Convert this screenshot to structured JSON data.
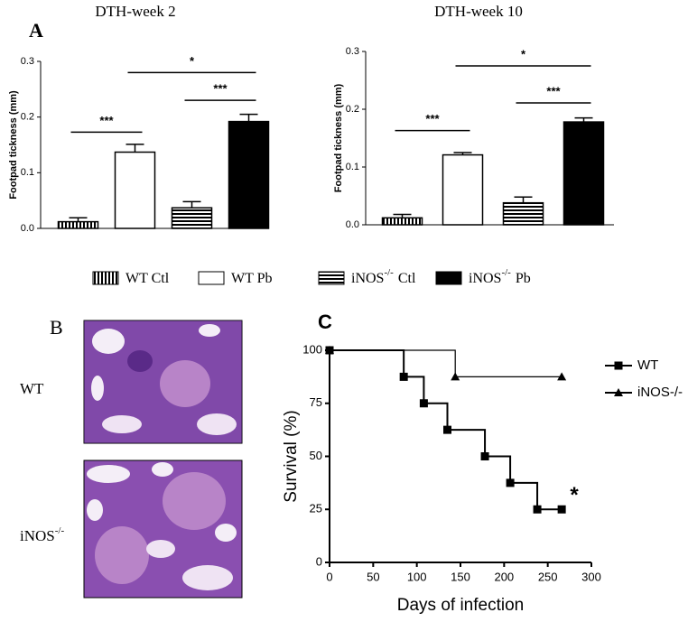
{
  "panel_labels": {
    "a": "A",
    "b": "B",
    "c": "C"
  },
  "legend": [
    {
      "text": "WT Ctl",
      "pattern": "vertical-stripes"
    },
    {
      "text": "WT Pb",
      "pattern": "none"
    },
    {
      "text": "iNOS",
      "sup": "-/-",
      "after": "Ctl",
      "pattern": "horizontal-stripes"
    },
    {
      "text": "iNOS",
      "sup": "-/-",
      "after": "Pb",
      "pattern": "solid"
    }
  ],
  "images": [
    {
      "text": "WT"
    },
    {
      "text": "iNOS",
      "sup": "-/-"
    }
  ],
  "chart_data": [
    {
      "type": "bar",
      "title": "DTH-week 2",
      "ylabel": "Footpad tickness (mm)",
      "categories": [
        null,
        null,
        null,
        null
      ],
      "values": [
        0.012,
        0.137,
        0.037,
        0.192
      ],
      "errors": [
        0.007,
        0.014,
        0.011,
        0.013
      ],
      "patterns": [
        "vertical-stripes",
        "none",
        "horizontal-stripes",
        "solid"
      ],
      "color": "#000000",
      "ylim": [
        0,
        0.3
      ],
      "yticks": [
        {
          "value": 0,
          "label": "0.0"
        },
        0.1,
        0.2,
        0.3
      ],
      "annotations": [
        {
          "text": "***",
          "from": 0,
          "to": 1,
          "y": 0.173
        },
        {
          "text": "*",
          "from": 1,
          "to": 3,
          "y": 0.28
        },
        {
          "text": "***",
          "from": 2,
          "to": 3,
          "y": 0.23
        }
      ]
    },
    {
      "type": "bar",
      "title": "DTH-week 10",
      "ylabel": "Footpad tickness (mm)",
      "categories": [
        null,
        null,
        null,
        null
      ],
      "values": [
        0.012,
        0.121,
        0.038,
        0.178
      ],
      "errors": [
        0.006,
        0.004,
        0.01,
        0.007
      ],
      "patterns": [
        "vertical-stripes",
        "none",
        "horizontal-stripes",
        "solid"
      ],
      "color": "#000000",
      "ylim": [
        0,
        0.3
      ],
      "yticks": [
        {
          "value": 0,
          "label": "0.0"
        },
        0.1,
        0.2,
        0.3
      ],
      "annotations": [
        {
          "text": "***",
          "from": 0,
          "to": 1,
          "y": 0.163
        },
        {
          "text": "*",
          "from": 1,
          "to": 3,
          "y": 0.275
        },
        {
          "text": "***",
          "from": 2,
          "to": 3,
          "y": 0.211
        }
      ]
    },
    {
      "type": "line",
      "step": true,
      "xlabel": "Days of infection",
      "ylabel": "Survival (%)",
      "xlim": [
        0,
        300
      ],
      "xticks": [
        0,
        50,
        100,
        150,
        200,
        250,
        300
      ],
      "ylim": [
        0,
        100
      ],
      "yticks": [
        0,
        25,
        50,
        75,
        100
      ],
      "series": [
        {
          "name": "WT",
          "marker": "square",
          "color": "#000000",
          "x": [
            0,
            85,
            108,
            135,
            178,
            207,
            238,
            266
          ],
          "values": [
            100,
            87.5,
            75,
            62.5,
            50,
            37.5,
            25,
            25
          ]
        },
        {
          "name": "iNOS-/-",
          "marker": "triangle",
          "color": "#000000",
          "x": [
            0,
            144,
            266
          ],
          "values": [
            100,
            87.5,
            87.5
          ]
        }
      ],
      "annotations": [
        {
          "text": "*",
          "x": 270,
          "y": 33
        }
      ]
    }
  ]
}
